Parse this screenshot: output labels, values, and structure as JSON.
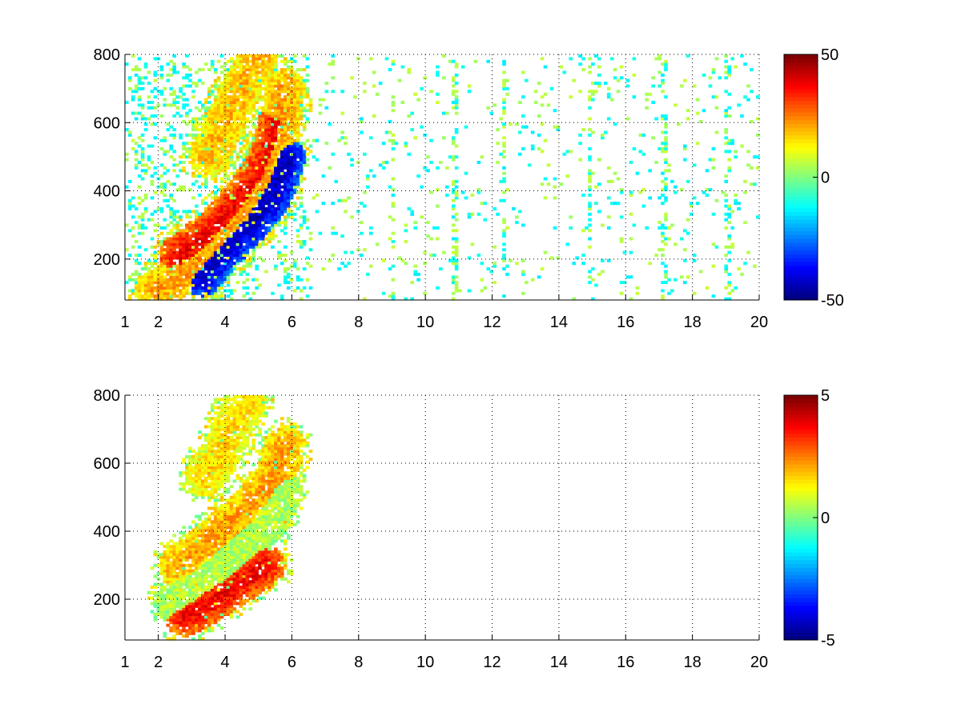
{
  "chart_data": [
    {
      "type": "heatmap",
      "title": "",
      "xlabel": "",
      "ylabel": "",
      "xlim": [
        1,
        20
      ],
      "ylim": [
        80,
        800
      ],
      "xticks": [
        1,
        2,
        4,
        6,
        8,
        10,
        12,
        14,
        16,
        18,
        20
      ],
      "yticks": [
        200,
        400,
        600,
        800
      ],
      "grid": true,
      "colormap": "jet",
      "clim": [
        -50,
        50
      ],
      "colorbar_ticks": [
        -50,
        0,
        50
      ],
      "ridges": [
        {
          "value": 35,
          "points": [
            [
              2.6,
              210
            ],
            [
              3.0,
              240
            ],
            [
              3.5,
              275
            ],
            [
              4.0,
              320
            ],
            [
              4.5,
              375
            ],
            [
              5.0,
              440
            ],
            [
              5.4,
              520
            ],
            [
              5.6,
              600
            ]
          ]
        },
        {
          "value": -40,
          "points": [
            [
              3.3,
              150
            ],
            [
              3.8,
              210
            ],
            [
              4.3,
              260
            ],
            [
              4.8,
              310
            ],
            [
              5.3,
              370
            ],
            [
              5.6,
              430
            ],
            [
              5.8,
              500
            ]
          ]
        },
        {
          "value": 20,
          "points": [
            [
              1.9,
              110
            ],
            [
              2.5,
              140
            ],
            [
              3.2,
              190
            ],
            [
              3.8,
              250
            ],
            [
              4.5,
              330
            ],
            [
              5.2,
              450
            ],
            [
              5.6,
              560
            ],
            [
              5.8,
              700
            ]
          ]
        },
        {
          "value": 18,
          "points": [
            [
              3.5,
              500
            ],
            [
              3.8,
              560
            ],
            [
              4.2,
              640
            ],
            [
              4.6,
              720
            ],
            [
              5.0,
              790
            ]
          ]
        }
      ],
      "scatter_bands": [
        [
          1.3,
          1.5
        ],
        [
          2.3,
          2.5
        ],
        [
          9.0,
          9.1
        ],
        [
          10.8,
          11.0
        ],
        [
          12.3,
          12.4
        ],
        [
          14.9,
          15.0
        ],
        [
          17.1,
          17.2
        ],
        [
          19.0,
          19.1
        ]
      ]
    },
    {
      "type": "heatmap",
      "title": "",
      "xlabel": "",
      "ylabel": "",
      "xlim": [
        1,
        20
      ],
      "ylim": [
        80,
        800
      ],
      "xticks": [
        1,
        2,
        4,
        6,
        8,
        10,
        12,
        14,
        16,
        18,
        20
      ],
      "yticks": [
        200,
        400,
        600,
        800
      ],
      "grid": true,
      "colormap": "jet",
      "clim": [
        -5,
        5
      ],
      "colorbar_ticks": [
        -5,
        0,
        5
      ],
      "ridges": [
        {
          "value": 2,
          "points": [
            [
              2.6,
              300
            ],
            [
              3.0,
              330
            ],
            [
              3.5,
              370
            ],
            [
              4.0,
              410
            ],
            [
              4.5,
              450
            ],
            [
              5.0,
              500
            ],
            [
              5.5,
              560
            ],
            [
              5.8,
              650
            ]
          ]
        },
        {
          "value": 0.5,
          "points": [
            [
              2.5,
              190
            ],
            [
              3.0,
              230
            ],
            [
              3.6,
              270
            ],
            [
              4.2,
              320
            ],
            [
              4.8,
              380
            ],
            [
              5.3,
              430
            ],
            [
              5.7,
              520
            ]
          ]
        },
        {
          "value": 3.5,
          "points": [
            [
              2.8,
              150
            ],
            [
              3.2,
              170
            ],
            [
              3.7,
              200
            ],
            [
              4.3,
              240
            ],
            [
              4.8,
              270
            ],
            [
              5.2,
              300
            ]
          ]
        },
        {
          "value": 1.5,
          "points": [
            [
              3.4,
              560
            ],
            [
              3.8,
              620
            ],
            [
              4.2,
              700
            ],
            [
              4.6,
              780
            ]
          ]
        }
      ],
      "scatter_bands": []
    }
  ]
}
